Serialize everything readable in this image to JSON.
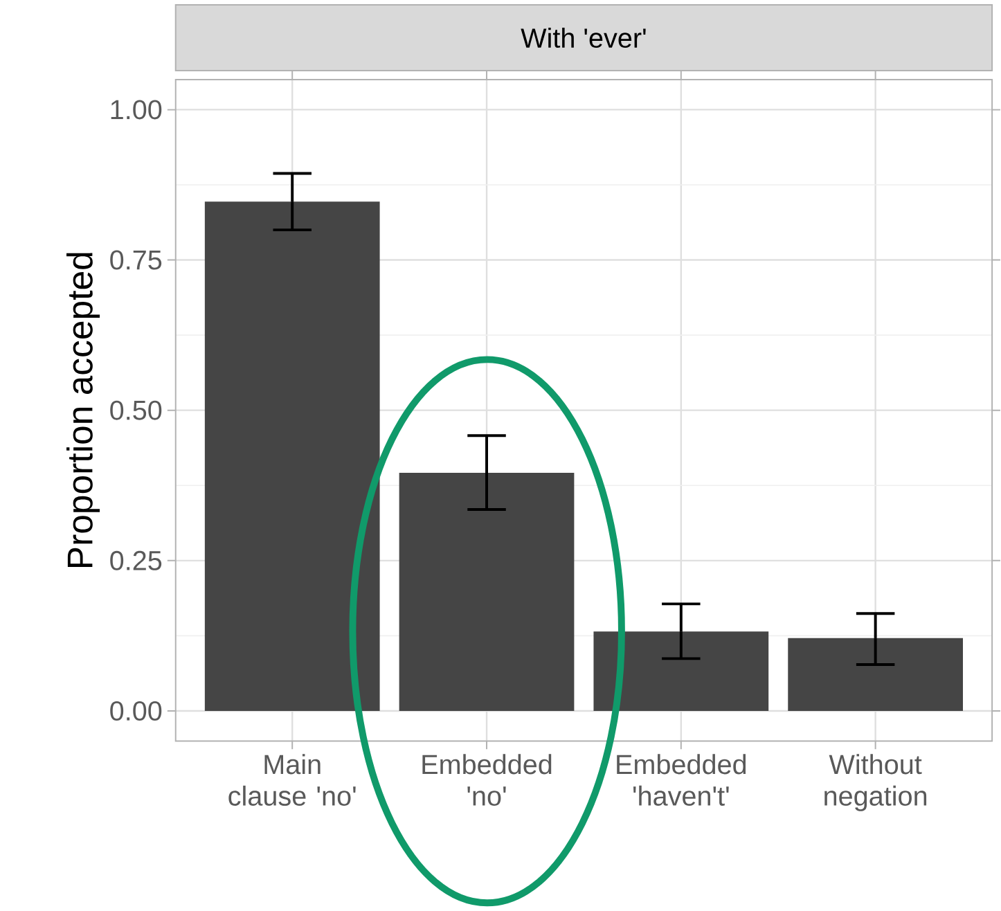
{
  "chart_data": {
    "type": "bar",
    "title": "With 'ever'",
    "ylabel": "Proportion accepted",
    "categories": [
      "Main clause 'no'",
      "Embedded 'no'",
      "Embedded 'haven't'",
      "Without negation"
    ],
    "values": [
      0.847,
      0.396,
      0.132,
      0.121
    ],
    "errors": [
      [
        0.8,
        0.894
      ],
      [
        0.335,
        0.458
      ],
      [
        0.087,
        0.178
      ],
      [
        0.077,
        0.162
      ]
    ],
    "color": "#454545",
    "ylim": [
      -0.05,
      1.05
    ],
    "yticks": [
      {
        "value": 0,
        "label": "0.00"
      },
      {
        "value": 0.25,
        "label": "0.25"
      },
      {
        "value": 0.5,
        "label": "0.50"
      },
      {
        "value": 0.75,
        "label": "0.75"
      },
      {
        "value": 1,
        "label": "1.00"
      }
    ],
    "grid": true
  }
}
